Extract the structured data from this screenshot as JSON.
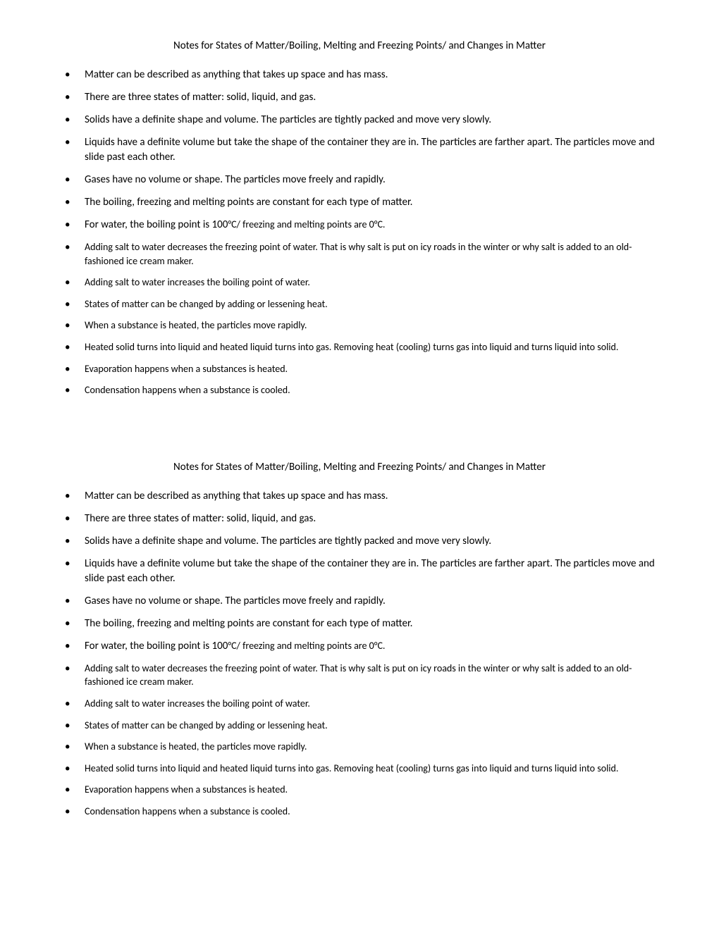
{
  "sections": [
    {
      "title": "Notes for States of Matter/Boiling, Melting and Freezing Points/ and Changes in Matter",
      "bullets": [
        {
          "text": "Matter can be described as anything that takes up space and has mass."
        },
        {
          "text": "There are three states of matter: solid, liquid, and gas."
        },
        {
          "text": "Solids have a definite shape and volume.  The particles are tightly packed and move very slowly."
        },
        {
          "text": "Liquids have a definite volume but take the shape of the container they are in.  The particles are farther apart.  The particles move and slide past each other."
        },
        {
          "text": "Gases have no volume or shape. The particles move freely and rapidly."
        },
        {
          "text": "The boiling, freezing and melting points are constant for each type of matter."
        },
        {
          "prefix": "For water, the boiling point is 100",
          "suffix": "°C/ freezing and melting points are 0°C."
        },
        {
          "text": "Adding salt to water decreases the freezing point of water.  That is why salt is put on icy roads in the winter or why salt is added to an old-fashioned ice cream maker.",
          "smaller": true
        },
        {
          "text": "Adding salt to water increases the boiling point of water.",
          "smaller": true
        },
        {
          "text": "States of matter can be changed by adding or lessening heat.",
          "smaller": true
        },
        {
          "text": "When a substance is heated, the particles move rapidly.",
          "smaller": true
        },
        {
          "text": "Heated solid turns into liquid and heated liquid turns into gas.  Removing heat (cooling) turns gas into liquid and turns liquid into solid.",
          "smaller": true
        },
        {
          "text": "Evaporation happens when a substances is heated.",
          "smaller": true
        },
        {
          "text": "Condensation happens when a substance is cooled.",
          "smaller": true
        }
      ]
    },
    {
      "title": "Notes for States of Matter/Boiling, Melting and Freezing Points/ and Changes in Matter",
      "bullets": [
        {
          "text": "Matter can be described as anything that takes up space and has mass."
        },
        {
          "text": "There are three states of matter: solid, liquid, and gas."
        },
        {
          "text": "Solids have a definite shape and volume.  The particles are tightly packed and move very slowly."
        },
        {
          "text": "Liquids have a definite volume but take the shape of the container they are in.  The particles are farther apart.  The particles move and slide past each other."
        },
        {
          "text": "Gases have no volume or shape. The particles move freely and rapidly."
        },
        {
          "text": "The boiling, freezing and melting points are constant for each type of matter."
        },
        {
          "prefix": "For water, the boiling point is 100",
          "suffix": "°C/ freezing and melting points are 0°C."
        },
        {
          "text": "Adding salt to water decreases the freezing point of water.  That is why salt is put on icy roads in the winter or why salt is added to an old-fashioned ice cream maker.",
          "smaller": true
        },
        {
          "text": "Adding salt to water increases the boiling point of water.",
          "smaller": true
        },
        {
          "text": "States of matter can be changed by adding or lessening heat.",
          "smaller": true
        },
        {
          "text": "When a substance is heated, the particles move rapidly.",
          "smaller": true
        },
        {
          "text": "Heated solid turns into liquid and heated liquid turns into gas.  Removing heat (cooling) turns gas into liquid and turns liquid into solid.",
          "smaller": true
        },
        {
          "text": "Evaporation happens when a substances is heated.",
          "smaller": true
        },
        {
          "text": "Condensation happens when a substance is cooled.",
          "smaller": true
        }
      ]
    }
  ]
}
